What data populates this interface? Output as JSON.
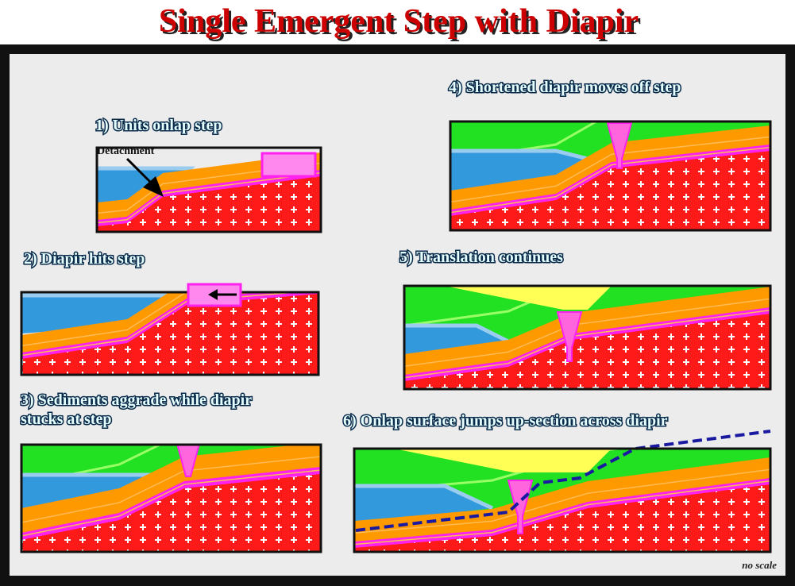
{
  "title": "Single Emergent Step with Diapir",
  "panels": [
    {
      "label": [
        "1) Units onlap step"
      ]
    },
    {
      "label": [
        "2) Diapir hits step"
      ]
    },
    {
      "label": [
        "3) Sediments aggrade while diapir",
        "stucks at step"
      ]
    },
    {
      "label": [
        "4) Shortened diapir moves off step"
      ]
    },
    {
      "label": [
        "5) Translation continues"
      ]
    },
    {
      "label": [
        "6) Onlap surface jumps up-section across diapir"
      ]
    }
  ],
  "annotations": {
    "detachment": "Detachment",
    "scale": "no scale"
  }
}
